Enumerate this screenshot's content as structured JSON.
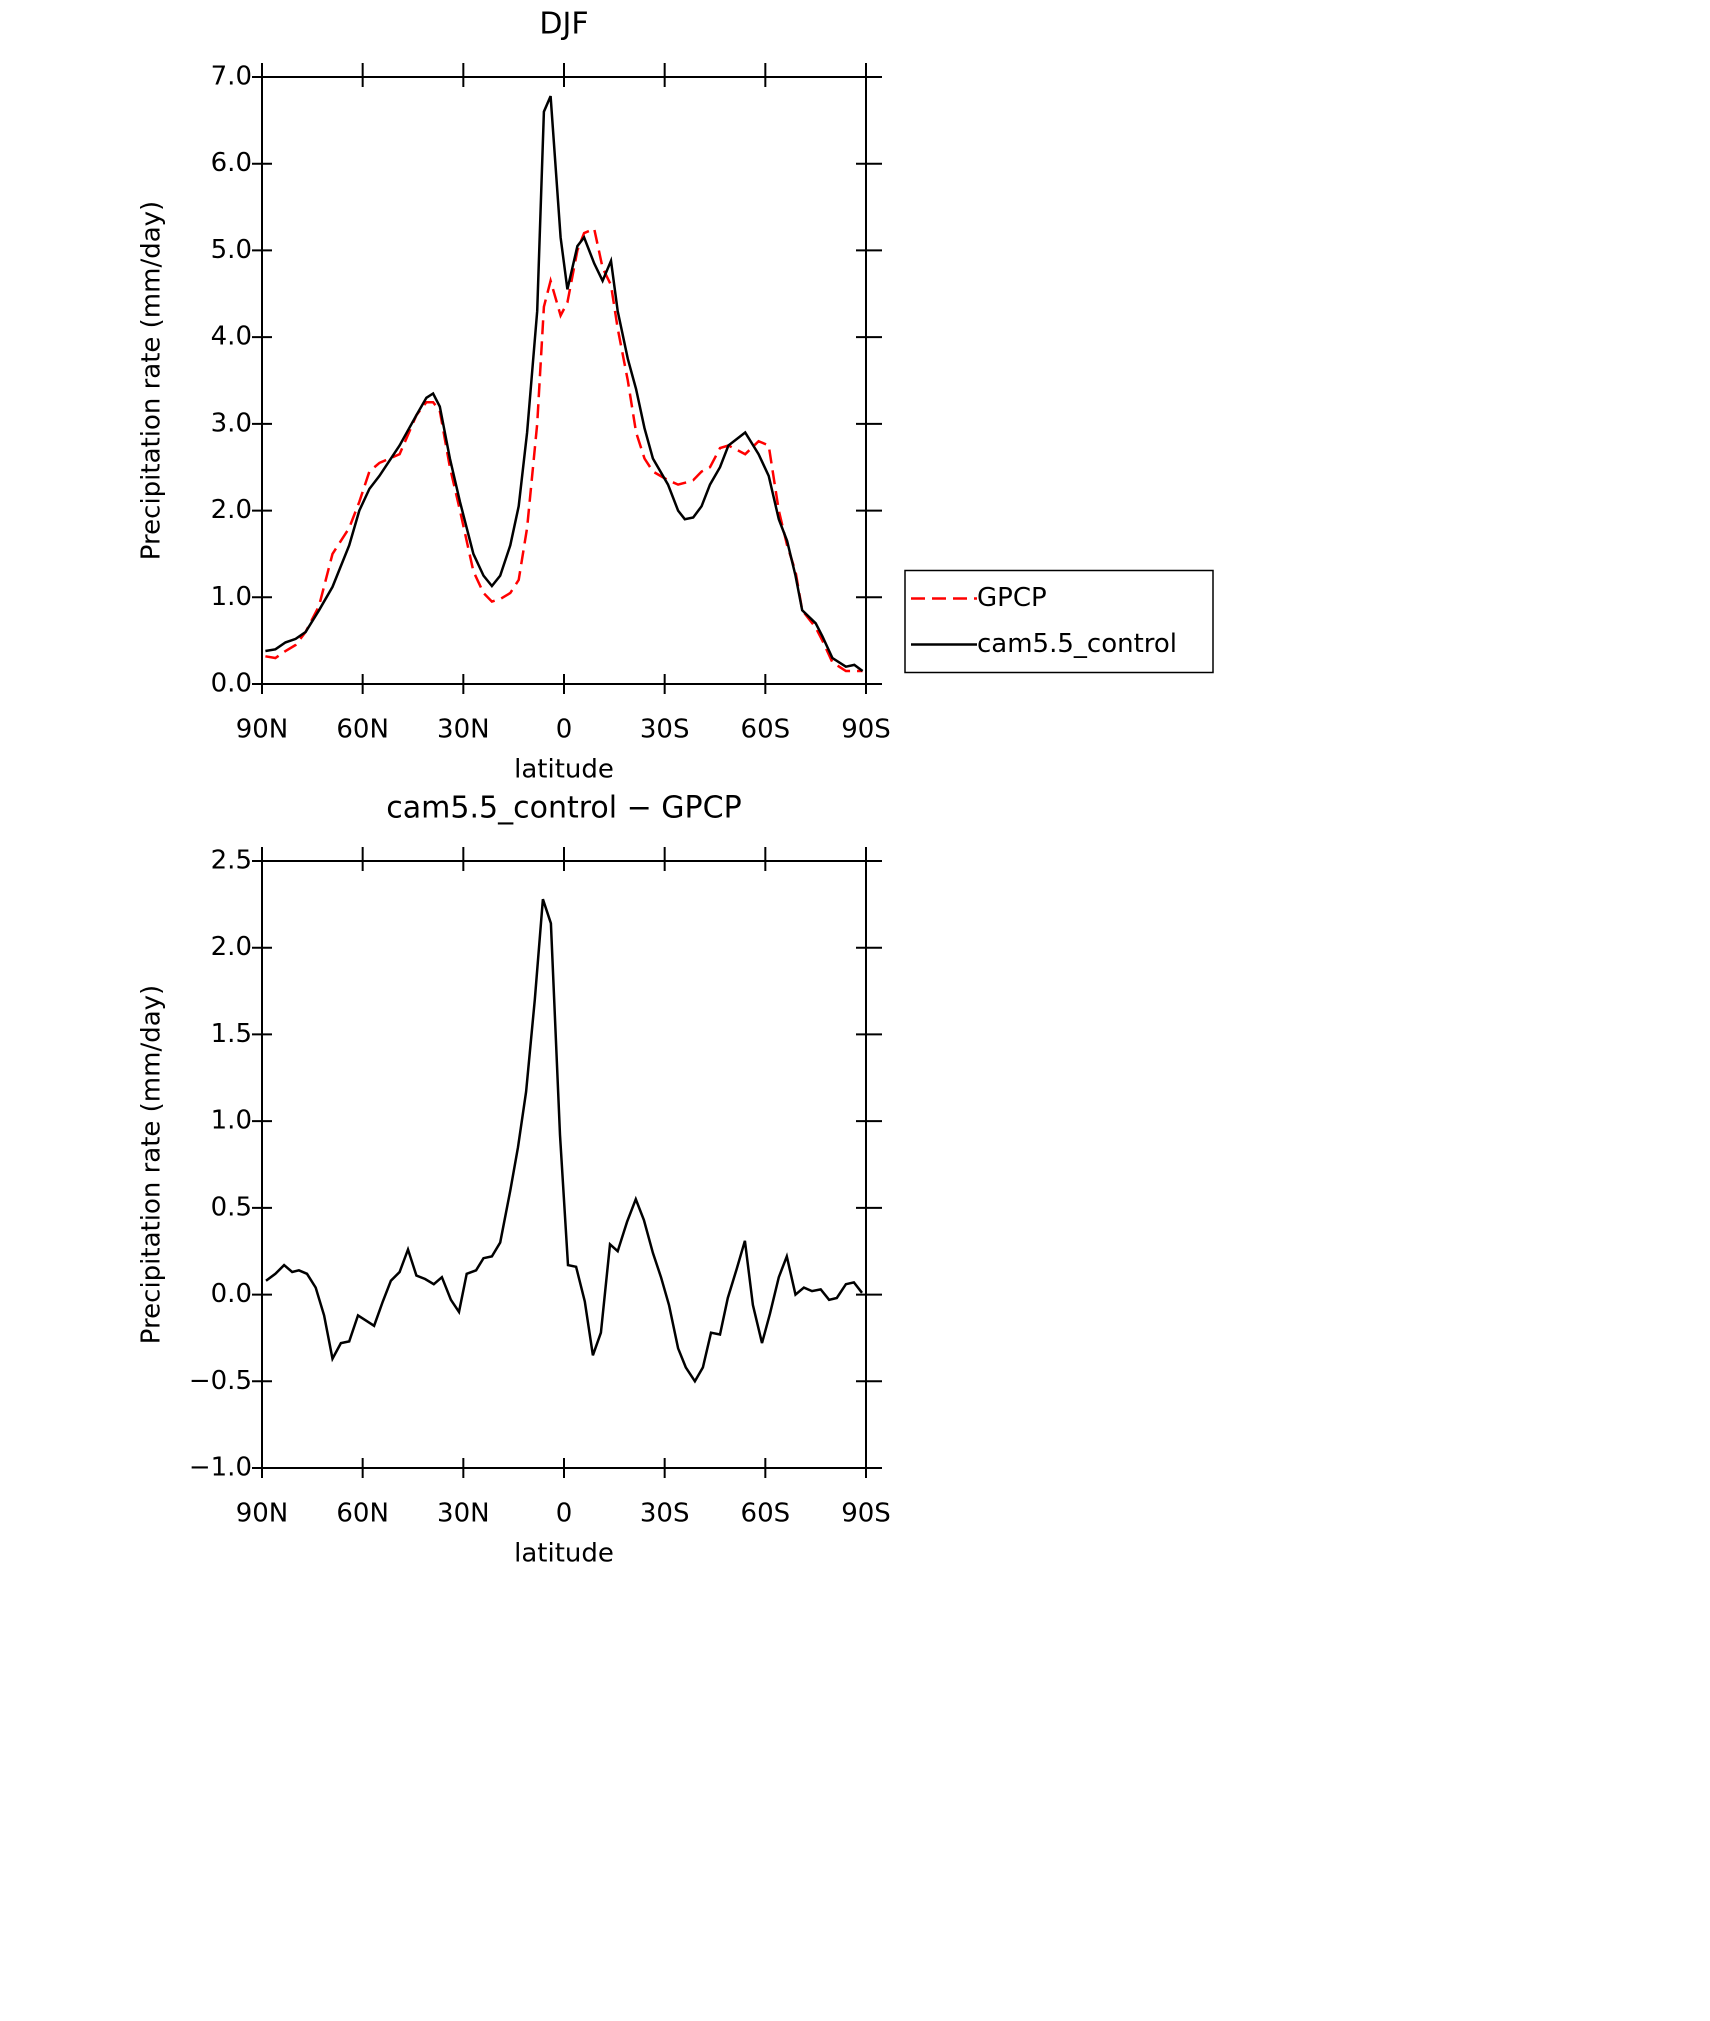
{
  "chart_data": [
    {
      "type": "line",
      "title": "DJF",
      "xlabel": "latitude",
      "ylabel": "Precipitation rate (mm/day)",
      "xlim": [
        90,
        -90
      ],
      "xticks": [
        {
          "value": 90,
          "label": "90N"
        },
        {
          "value": 60,
          "label": "60N"
        },
        {
          "value": 30,
          "label": "30N"
        },
        0,
        {
          "value": -30,
          "label": "30S"
        },
        {
          "value": -60,
          "label": "60S"
        },
        {
          "value": -90,
          "label": "90S"
        }
      ],
      "ylim": [
        0,
        7
      ],
      "yticks": [
        {
          "value": 0,
          "label": "0.0"
        },
        {
          "value": 1,
          "label": "1.0"
        },
        {
          "value": 2,
          "label": "2.0"
        },
        {
          "value": 3,
          "label": "3.0"
        },
        {
          "value": 4,
          "label": "4.0"
        },
        {
          "value": 5,
          "label": "5.0"
        },
        {
          "value": 6,
          "label": "6.0"
        },
        {
          "value": 7,
          "label": "7.0"
        }
      ],
      "legend": "right",
      "x": [
        89,
        86,
        83,
        80,
        77,
        73,
        69,
        64,
        61,
        58,
        55,
        49,
        44,
        41,
        39,
        37,
        34,
        31,
        27,
        24,
        21.5,
        19,
        16,
        13.5,
        11,
        8,
        6,
        4,
        1,
        -1,
        -4,
        -6,
        -9,
        -11.5,
        -14,
        -16,
        -19,
        -21.5,
        -24,
        -26.5,
        -31,
        -34,
        -36,
        -38.5,
        -41,
        -43.5,
        -46.5,
        -49,
        -54,
        -58,
        -61,
        -64,
        -66.5,
        -69,
        -71,
        -75,
        -77,
        -80,
        -84,
        -86.5,
        -89
      ],
      "series": [
        {
          "name": "GPCP",
          "color": "#ff0000",
          "linestyle": "dashed",
          "values": [
            0.32,
            0.3,
            0.38,
            0.45,
            0.6,
            0.9,
            1.5,
            1.8,
            2.1,
            2.45,
            2.55,
            2.65,
            3.1,
            3.25,
            3.25,
            3.15,
            2.5,
            2.0,
            1.3,
            1.05,
            0.95,
            0.98,
            1.05,
            1.2,
            1.8,
            3.0,
            4.35,
            4.65,
            4.25,
            4.4,
            5.0,
            5.2,
            5.25,
            4.8,
            4.6,
            4.1,
            3.5,
            2.9,
            2.6,
            2.45,
            2.35,
            2.3,
            2.32,
            2.35,
            2.45,
            2.5,
            2.72,
            2.75,
            2.65,
            2.8,
            2.75,
            2.0,
            1.6,
            1.3,
            0.85,
            0.65,
            0.5,
            0.25,
            0.15,
            0.15,
            0.15
          ]
        },
        {
          "name": "cam5.5_control",
          "color": "#000000",
          "linestyle": "solid",
          "values": [
            0.38,
            0.4,
            0.48,
            0.52,
            0.6,
            0.85,
            1.12,
            1.6,
            2.0,
            2.25,
            2.4,
            2.75,
            3.1,
            3.3,
            3.35,
            3.2,
            2.6,
            2.1,
            1.5,
            1.25,
            1.13,
            1.25,
            1.6,
            2.05,
            2.9,
            4.3,
            6.6,
            6.78,
            5.15,
            4.55,
            5.05,
            5.15,
            4.85,
            4.65,
            4.88,
            4.3,
            3.75,
            3.4,
            2.95,
            2.6,
            2.3,
            2.0,
            1.9,
            1.92,
            2.05,
            2.3,
            2.5,
            2.75,
            2.9,
            2.65,
            2.4,
            1.9,
            1.65,
            1.25,
            0.85,
            0.7,
            0.55,
            0.3,
            0.2,
            0.22,
            0.15
          ]
        }
      ]
    },
    {
      "type": "line",
      "title": "cam5.5_control − GPCP",
      "xlabel": "latitude",
      "ylabel": "Precipitation rate (mm/day)",
      "xlim": [
        90,
        -90
      ],
      "xticks": [
        {
          "value": 90,
          "label": "90N"
        },
        {
          "value": 60,
          "label": "60N"
        },
        {
          "value": 30,
          "label": "30N"
        },
        0,
        {
          "value": -30,
          "label": "30S"
        },
        {
          "value": -60,
          "label": "60S"
        },
        {
          "value": -90,
          "label": "90S"
        }
      ],
      "ylim": [
        -1,
        2.5
      ],
      "yticks": [
        {
          "value": -1,
          "label": "−1.0"
        },
        {
          "value": -0.5,
          "label": "−0.5"
        },
        {
          "value": 0,
          "label": "0.0"
        },
        0.5,
        {
          "value": 1,
          "label": "1.0"
        },
        1.5,
        {
          "value": 2,
          "label": "2.0"
        },
        2.5
      ],
      "x": [
        88.8,
        86,
        83.4,
        81,
        79,
        76.6,
        74,
        71.5,
        69,
        66.5,
        64,
        61.4,
        59,
        56.6,
        54,
        51.6,
        49,
        46.5,
        44,
        41.4,
        38.8,
        36.4,
        33.7,
        31.3,
        29,
        26.2,
        24,
        21.5,
        19,
        16,
        13.7,
        11.3,
        8.7,
        6.3,
        3.9,
        1.2,
        -1.2,
        -3.6,
        -6.2,
        -8.6,
        -11,
        -13.7,
        -16,
        -18.8,
        -21.4,
        -23.8,
        -26.5,
        -28.9,
        -31.3,
        -34,
        -36.3,
        -39,
        -41.4,
        -43.8,
        -46.5,
        -48.8,
        -51.5,
        -53.9,
        -56.3,
        -59,
        -61.4,
        -64,
        -66.4,
        -69,
        -71.5,
        -73.9,
        -76.5,
        -79,
        -81.3,
        -84,
        -86.4,
        -88.8
      ],
      "series": [
        {
          "color": "#000000",
          "linestyle": "solid",
          "values": [
            0.08,
            0.12,
            0.17,
            0.13,
            0.14,
            0.12,
            0.04,
            -0.12,
            -0.37,
            -0.28,
            -0.27,
            -0.12,
            -0.15,
            -0.18,
            -0.04,
            0.08,
            0.13,
            0.26,
            0.11,
            0.09,
            0.06,
            0.1,
            -0.03,
            -0.1,
            0.12,
            0.14,
            0.21,
            0.22,
            0.3,
            0.6,
            0.85,
            1.17,
            1.7,
            2.28,
            2.14,
            0.92,
            0.17,
            0.16,
            -0.04,
            -0.35,
            -0.22,
            0.29,
            0.25,
            0.42,
            0.55,
            0.43,
            0.24,
            0.1,
            -0.06,
            -0.31,
            -0.42,
            -0.5,
            -0.42,
            -0.22,
            -0.23,
            -0.02,
            0.15,
            0.31,
            -0.06,
            -0.28,
            -0.11,
            0.1,
            0.22,
            0.0,
            0.04,
            0.02,
            0.03,
            -0.03,
            -0.02,
            0.06,
            0.07,
            0.01
          ]
        }
      ]
    }
  ]
}
